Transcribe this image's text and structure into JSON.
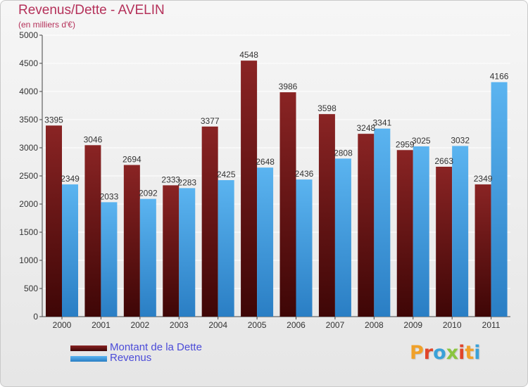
{
  "title": "Revenus/Dette - AVELIN",
  "subtitle": "(en milliers d'€)",
  "colors": {
    "dette": "#7a1a1a",
    "dette_dark": "#4a0a0a",
    "revenus": "#4aa6e8",
    "revenus_dark": "#2a7ec4",
    "text": "#333333",
    "title": "#b5315a",
    "legend_text": "#4b4bd8"
  },
  "legend": {
    "dette_label": "Montant de la Dette",
    "revenus_label": "Revenus"
  },
  "logo": {
    "text": "Proxiti",
    "icon": "proxiti-logo"
  },
  "chart_data": {
    "type": "bar",
    "title": "Revenus/Dette - AVELIN",
    "subtitle": "(en milliers d'€)",
    "xlabel": "",
    "ylabel": "",
    "ylim": [
      0,
      5000
    ],
    "yticks": [
      0,
      500,
      1000,
      1500,
      2000,
      2500,
      3000,
      3500,
      4000,
      4500,
      5000
    ],
    "grid": true,
    "legend_position": "bottom-left",
    "categories": [
      "2000",
      "2001",
      "2002",
      "2003",
      "2004",
      "2005",
      "2006",
      "2007",
      "2008",
      "2009",
      "2010",
      "2011"
    ],
    "series": [
      {
        "name": "Montant de la Dette",
        "color": "#7a1a1a",
        "values": [
          3395,
          3046,
          2694,
          2333,
          3377,
          4548,
          3986,
          3598,
          3248,
          2959,
          2663,
          2349
        ]
      },
      {
        "name": "Revenus",
        "color": "#4aa6e8",
        "values": [
          2349,
          2033,
          2092,
          2283,
          2425,
          2648,
          2436,
          2808,
          3341,
          3025,
          3032,
          4166
        ]
      }
    ]
  }
}
